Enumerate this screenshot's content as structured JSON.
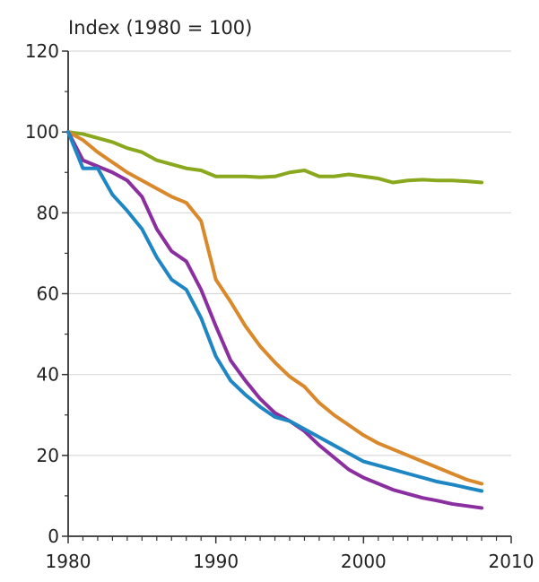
{
  "chart_data": {
    "type": "line",
    "ylabel": "Index (1980 = 100)",
    "xlim": [
      1980,
      2010
    ],
    "ylim": [
      0,
      120
    ],
    "x_ticks": [
      1980,
      1990,
      2000,
      2010
    ],
    "y_ticks": [
      0,
      20,
      40,
      60,
      80,
      100,
      120
    ],
    "grid": true,
    "colors": {
      "grid": "#d9d9d9",
      "axis": "#333333"
    },
    "series": [
      {
        "color": "#8aa81d",
        "x": [
          1980,
          1981,
          1982,
          1983,
          1984,
          1985,
          1986,
          1987,
          1988,
          1989,
          1990,
          1991,
          1992,
          1993,
          1994,
          1995,
          1996,
          1997,
          1998,
          1999,
          2000,
          2001,
          2002,
          2003,
          2004,
          2005,
          2006,
          2007,
          2008
        ],
        "values": [
          100,
          99.5,
          98.5,
          97.5,
          96,
          95,
          93,
          92,
          91,
          90.5,
          89,
          89,
          89,
          88.8,
          89,
          90,
          90.5,
          89,
          89,
          89.5,
          89,
          88.5,
          87.5,
          88,
          88.2,
          88,
          88,
          87.8,
          87.5
        ]
      },
      {
        "color": "#d9892b",
        "x": [
          1980,
          1981,
          1982,
          1983,
          1984,
          1985,
          1986,
          1987,
          1988,
          1989,
          1990,
          1991,
          1992,
          1993,
          1994,
          1995,
          1996,
          1997,
          1998,
          1999,
          2000,
          2001,
          2002,
          2003,
          2004,
          2005,
          2006,
          2007,
          2008
        ],
        "values": [
          100,
          98,
          95,
          92.5,
          90,
          88,
          86,
          84,
          82.5,
          78,
          63.5,
          58,
          52,
          47,
          43,
          39.5,
          37,
          33,
          30,
          27.5,
          25,
          23,
          21.5,
          20,
          18.5,
          17,
          15.5,
          14,
          13
        ]
      },
      {
        "color": "#8b2fa0",
        "x": [
          1980,
          1981,
          1982,
          1983,
          1984,
          1985,
          1986,
          1987,
          1988,
          1989,
          1990,
          1991,
          1992,
          1993,
          1994,
          1995,
          1996,
          1997,
          1998,
          1999,
          2000,
          2001,
          2002,
          2003,
          2004,
          2005,
          2006,
          2007,
          2008
        ],
        "values": [
          100,
          93,
          91.5,
          90,
          88,
          84,
          76,
          70.5,
          68,
          61,
          52,
          43.5,
          38.5,
          34,
          30.5,
          28.5,
          26,
          22.5,
          19.5,
          16.5,
          14.5,
          13,
          11.5,
          10.5,
          9.5,
          8.8,
          8,
          7.5,
          7
        ]
      },
      {
        "color": "#1d86c3",
        "x": [
          1980,
          1981,
          1982,
          1983,
          1984,
          1985,
          1986,
          1987,
          1988,
          1989,
          1990,
          1991,
          1992,
          1993,
          1994,
          1995,
          1996,
          1997,
          1998,
          1999,
          2000,
          2001,
          2002,
          2003,
          2004,
          2005,
          2006,
          2007,
          2008
        ],
        "values": [
          100,
          91,
          91,
          84.5,
          80.5,
          76,
          69,
          63.5,
          61,
          54,
          44.5,
          38.5,
          35,
          32,
          29.5,
          28.5,
          26.5,
          24.5,
          22.5,
          20.5,
          18.5,
          17.5,
          16.5,
          15.5,
          14.5,
          13.5,
          12.8,
          12,
          11.2
        ]
      }
    ]
  }
}
